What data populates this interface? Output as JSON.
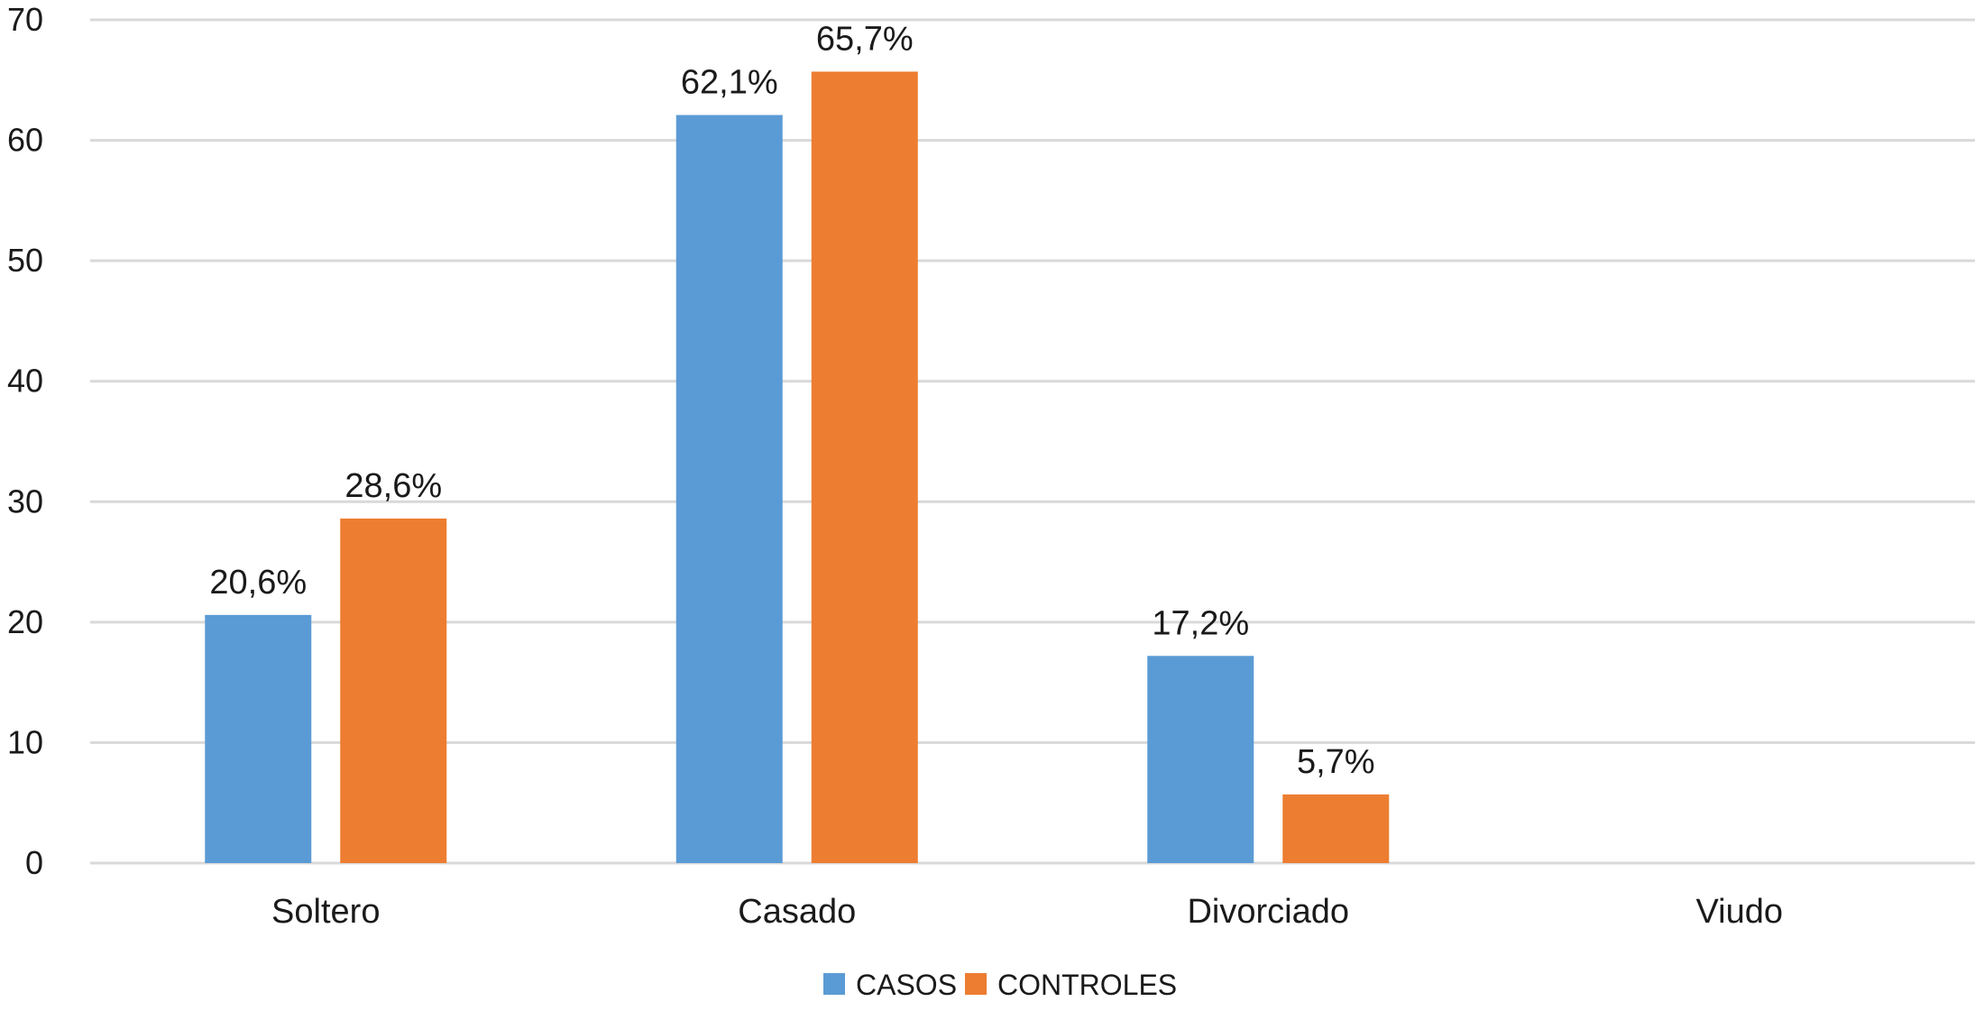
{
  "chart_data": {
    "type": "bar",
    "title": "",
    "xlabel": "",
    "ylabel": "",
    "ylim": [
      0,
      70
    ],
    "yticks": [
      0,
      10,
      20,
      30,
      40,
      50,
      60,
      70
    ],
    "grid": true,
    "legend_position": "bottom",
    "categories": [
      "Soltero",
      "Casado",
      "Divorciado",
      "Viudo"
    ],
    "series": [
      {
        "name": "CASOS",
        "color": "#5b9bd5",
        "values": [
          20.6,
          62.1,
          17.2,
          null
        ],
        "labels": [
          "20,6%",
          "62,1%",
          "17,2%",
          null
        ]
      },
      {
        "name": "CONTROLES",
        "color": "#ed7d31",
        "values": [
          28.6,
          65.7,
          5.7,
          null
        ],
        "labels": [
          "28,6%",
          "65,7%",
          "5,7%",
          null
        ]
      }
    ]
  }
}
